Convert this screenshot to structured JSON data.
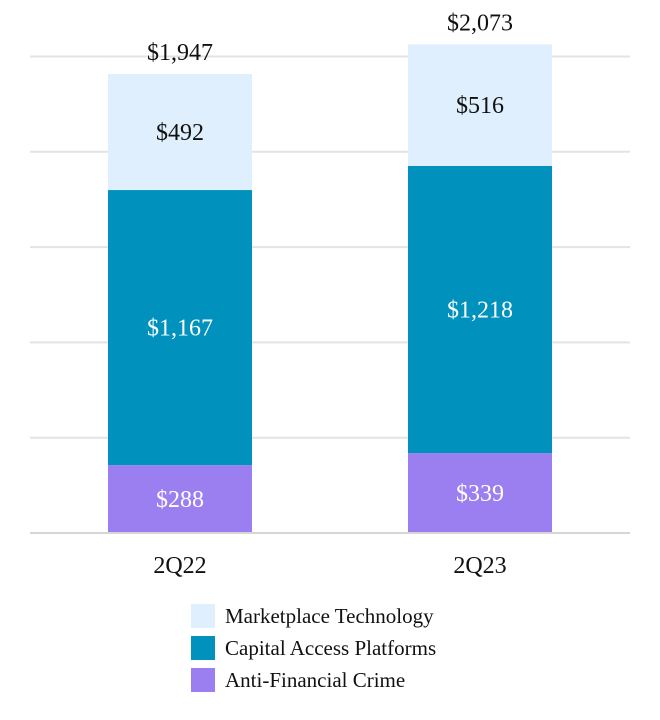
{
  "chart_data": {
    "type": "bar",
    "stacked": true,
    "categories": [
      "2Q22",
      "2Q23"
    ],
    "series": [
      {
        "name": "Anti-Financial Crime",
        "values": [
          288,
          339
        ],
        "labels": [
          "$288",
          "$339"
        ],
        "color": "#9b7ff0",
        "label_color": "#ffffff"
      },
      {
        "name": "Capital Access Platforms",
        "values": [
          1167,
          1218
        ],
        "labels": [
          "$1,167",
          "$1,218"
        ],
        "color": "#0092bc",
        "label_color": "#ffffff"
      },
      {
        "name": "Marketplace Technology",
        "values": [
          492,
          516
        ],
        "labels": [
          "$492",
          "$516"
        ],
        "color": "#dfeffd",
        "label_color": "#111111"
      }
    ],
    "totals": [
      1947,
      2073
    ],
    "total_labels": [
      "$1,947",
      "$2,073"
    ],
    "ylim": [
      0,
      2100
    ],
    "grid": true,
    "legend_position": "bottom"
  },
  "legend": {
    "items": [
      {
        "label": "Marketplace Technology",
        "color": "#dfeffd"
      },
      {
        "label": "Capital Access Platforms",
        "color": "#0092bc"
      },
      {
        "label": "Anti-Financial Crime",
        "color": "#9b7ff0"
      }
    ]
  }
}
